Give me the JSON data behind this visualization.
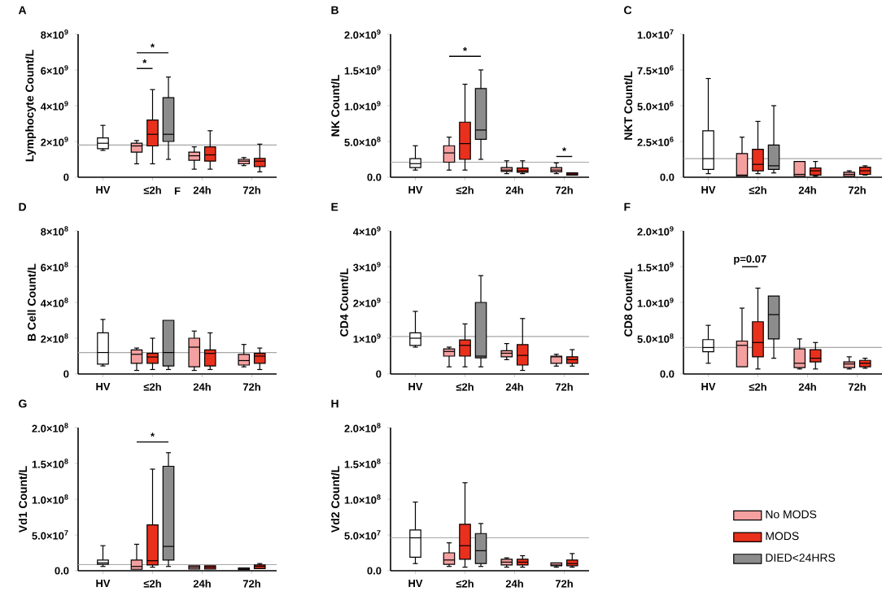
{
  "chart_data": [
    {
      "type": "box",
      "title": "A",
      "ylabel": "Lymphocyte Count/L",
      "categories": [
        "HV",
        "≤2h",
        "24h",
        "72h"
      ],
      "ylim": [
        0,
        8000000000
      ],
      "yticks": [
        0,
        {
          "value": 2000000000,
          "label": "2×10$^{9}$"
        },
        {
          "value": 4000000000,
          "label": "4×10$^{9}$"
        },
        {
          "value": 6000000000,
          "label": "6×10$^{9}$"
        },
        {
          "value": 8000000000,
          "label": "8×10$^{9}$"
        }
      ],
      "ref_lines": [
        {
          "axis": "y",
          "value": 1800000000,
          "color": "#a6a6a6"
        }
      ],
      "annotations": [
        "*",
        "*",
        "F"
      ],
      "series": [
        {
          "color": "#ffffff",
          "boxes": [
            {
              "low": 1500000000.0,
              "q1": 1600000000.0,
              "median": 1900000000.0,
              "q3": 2200000000.0,
              "high": 2900000000.0
            },
            null,
            null,
            null
          ]
        },
        {
          "color": "#f4a0a0",
          "boxes": [
            null,
            {
              "low": 750000000.0,
              "q1": 1400000000.0,
              "median": 1750000000.0,
              "q3": 1900000000.0,
              "high": 2050000000.0
            },
            {
              "low": 450000000.0,
              "q1": 950000000.0,
              "median": 1200000000.0,
              "q3": 1400000000.0,
              "high": 1700000000.0
            },
            {
              "low": 650000000.0,
              "q1": 750000000.0,
              "median": 900000000.0,
              "q3": 1000000000.0,
              "high": 1100000000.0
            }
          ]
        },
        {
          "color": "#e8301c",
          "boxes": [
            null,
            {
              "low": 750000000.0,
              "q1": 1750000000.0,
              "median": 2400000000.0,
              "q3": 3200000000.0,
              "high": 4900000000.0
            },
            {
              "low": 450000000.0,
              "q1": 900000000.0,
              "median": 1250000000.0,
              "q3": 1700000000.0,
              "high": 2600000000.0
            },
            {
              "low": 300000000.0,
              "q1": 600000000.0,
              "median": 900000000.0,
              "q3": 1050000000.0,
              "high": 1850000000.0
            }
          ]
        },
        {
          "color": "#8c8c8c",
          "boxes": [
            null,
            {
              "low": 1000000000.0,
              "q1": 2000000000.0,
              "median": 2400000000.0,
              "q3": 4450000000.0,
              "high": 5600000000.0
            },
            null,
            null
          ]
        }
      ]
    },
    {
      "type": "box",
      "title": "B",
      "ylabel": "NK Count/L",
      "categories": [
        "HV",
        "≤2h",
        "24h",
        "72h"
      ],
      "ylim": [
        0,
        2000000000
      ],
      "yticks": [
        {
          "value": 0,
          "label": "0.0"
        },
        {
          "value": 500000000,
          "label": "5.0×10$^{8}$"
        },
        {
          "value": 1000000000,
          "label": "1.0×10$^{9}$"
        },
        {
          "value": 1500000000,
          "label": "1.5×10$^{9}$"
        },
        {
          "value": 2000000000,
          "label": "2.0×10$^{9}$"
        }
      ],
      "ref_lines": [
        {
          "axis": "y",
          "value": 210000000,
          "color": "#a6a6a6"
        }
      ],
      "annotations": [
        "*",
        "*"
      ],
      "series": [
        {
          "color": "#ffffff",
          "boxes": [
            {
              "low": 100000000.0,
              "q1": 135000000.0,
              "median": 190000000.0,
              "q3": 260000000.0,
              "high": 440000000.0
            },
            null,
            null,
            null
          ]
        },
        {
          "color": "#f4a0a0",
          "boxes": [
            null,
            {
              "low": 100000000.0,
              "q1": 210000000.0,
              "median": 340000000.0,
              "q3": 440000000.0,
              "high": 560000000.0
            },
            {
              "low": 50000000.0,
              "q1": 80000000.0,
              "median": 100000000.0,
              "q3": 135000000.0,
              "high": 230000000.0
            },
            {
              "low": 50000000.0,
              "q1": 75000000.0,
              "median": 100000000.0,
              "q3": 135000000.0,
              "high": 200000000.0
            }
          ]
        },
        {
          "color": "#e8301c",
          "boxes": [
            null,
            {
              "low": 100000000.0,
              "q1": 250000000.0,
              "median": 470000000.0,
              "q3": 770000000.0,
              "high": 1300000000.0
            },
            {
              "low": 50000000.0,
              "q1": 70000000.0,
              "median": 90000000.0,
              "q3": 130000000.0,
              "high": 230000000.0
            },
            {
              "low": 30000000.0,
              "q1": 30000000.0,
              "median": 45000000.0,
              "q3": 60000000.0,
              "high": 60000000.0
            }
          ]
        },
        {
          "color": "#8c8c8c",
          "boxes": [
            null,
            {
              "low": 250000000.0,
              "q1": 530000000.0,
              "median": 660000000.0,
              "q3": 1240000000.0,
              "high": 1500000000.0
            },
            null,
            null
          ]
        }
      ]
    },
    {
      "type": "box",
      "title": "C",
      "ylabel": "NKT Count/L",
      "categories": [
        "HV",
        "≤2h",
        "24h",
        "72h"
      ],
      "ylim": [
        0,
        10000000
      ],
      "yticks": [
        {
          "value": 0,
          "label": "0.0"
        },
        {
          "value": 2500000,
          "label": "2.5×10$^{6}$"
        },
        {
          "value": 5000000,
          "label": "5.0×10$^{6}$"
        },
        {
          "value": 7500000,
          "label": "7.5×10$^{6}$"
        },
        {
          "value": 10000000,
          "label": "1.0×10$^{7}$"
        }
      ],
      "ref_lines": [
        {
          "axis": "y",
          "value": 1300000,
          "color": "#a6a6a6"
        }
      ],
      "series": [
        {
          "color": "#ffffff",
          "boxes": [
            {
              "low": 250000.0,
              "q1": 550000.0,
              "median": 1300000.0,
              "q3": 3250000.0,
              "high": 6900000.0
            },
            null,
            null,
            null
          ]
        },
        {
          "color": "#f4a0a0",
          "boxes": [
            null,
            {
              "low": 70000.0,
              "q1": 70000.0,
              "median": 150000.0,
              "q3": 1650000.0,
              "high": 2800000.0
            },
            {
              "low": 70000.0,
              "q1": 70000.0,
              "median": 200000.0,
              "q3": 1100000.0,
              "high": 1100000.0
            },
            {
              "low": 70000.0,
              "q1": 70000.0,
              "median": 200000.0,
              "q3": 350000.0,
              "high": 450000.0
            }
          ]
        },
        {
          "color": "#e8301c",
          "boxes": [
            null,
            {
              "low": 250000.0,
              "q1": 450000.0,
              "median": 900000.0,
              "q3": 1950000.0,
              "high": 3900000.0
            },
            {
              "low": 70000.0,
              "q1": 150000.0,
              "median": 450000.0,
              "q3": 650000.0,
              "high": 1100000.0
            },
            {
              "low": 150000.0,
              "q1": 200000.0,
              "median": 450000.0,
              "q3": 700000.0,
              "high": 800000.0
            }
          ]
        },
        {
          "color": "#8c8c8c",
          "boxes": [
            null,
            {
              "low": 300000.0,
              "q1": 550000.0,
              "median": 800000.0,
              "q3": 2250000.0,
              "high": 5000000.0
            },
            null,
            null
          ]
        }
      ]
    },
    {
      "type": "box",
      "title": "D",
      "ylabel": "B Cell Count/L",
      "categories": [
        "HV",
        "≤2h",
        "24h",
        "72h"
      ],
      "ylim": [
        0,
        800000000
      ],
      "yticks": [
        0,
        {
          "value": 200000000,
          "label": "2×10$^{8}$"
        },
        {
          "value": 400000000,
          "label": "4×10$^{8}$"
        },
        {
          "value": 600000000,
          "label": "6×10$^{8}$"
        },
        {
          "value": 800000000,
          "label": "8×10$^{8}$"
        }
      ],
      "ref_lines": [
        {
          "axis": "y",
          "value": 120000000,
          "color": "#a6a6a6"
        }
      ],
      "series": [
        {
          "color": "#ffffff",
          "boxes": [
            {
              "low": 45000000.0,
              "q1": 55000000.0,
              "median": 120000000.0,
              "q3": 230000000.0,
              "high": 305000000.0
            },
            null,
            null,
            null
          ]
        },
        {
          "color": "#f4a0a0",
          "boxes": [
            null,
            {
              "low": 20000000.0,
              "q1": 60000000.0,
              "median": 110000000.0,
              "q3": 135000000.0,
              "high": 145000000.0
            },
            {
              "low": 20000000.0,
              "q1": 40000000.0,
              "median": 150000000.0,
              "q3": 200000000.0,
              "high": 240000000.0
            },
            {
              "low": 40000000.0,
              "q1": 50000000.0,
              "median": 75000000.0,
              "q3": 110000000.0,
              "high": 165000000.0
            }
          ]
        },
        {
          "color": "#e8301c",
          "boxes": [
            null,
            {
              "low": 25000000.0,
              "q1": 60000000.0,
              "median": 95000000.0,
              "q3": 115000000.0,
              "high": 200000000.0
            },
            {
              "low": 25000000.0,
              "q1": 45000000.0,
              "median": 115000000.0,
              "q3": 135000000.0,
              "high": 230000000.0
            },
            {
              "low": 25000000.0,
              "q1": 60000000.0,
              "median": 100000000.0,
              "q3": 115000000.0,
              "high": 145000000.0
            }
          ]
        },
        {
          "color": "#8c8c8c",
          "boxes": [
            null,
            {
              "low": 25000000.0,
              "q1": 45000000.0,
              "median": 120000000.0,
              "q3": 300000000.0,
              "high": 300000000.0
            },
            null,
            null
          ]
        }
      ]
    },
    {
      "type": "box",
      "title": "E",
      "ylabel": "CD4 Count/L",
      "categories": [
        "HV",
        "≤2h",
        "24h",
        "72h"
      ],
      "ylim": [
        0,
        4000000000
      ],
      "yticks": [
        0,
        {
          "value": 1000000000,
          "label": "1×10$^{9}$"
        },
        {
          "value": 2000000000,
          "label": "2×10$^{9}$"
        },
        {
          "value": 3000000000,
          "label": "3×10$^{9}$"
        },
        {
          "value": 4000000000,
          "label": "4×10$^{9}$"
        }
      ],
      "ref_lines": [
        {
          "axis": "y",
          "value": 1050000000,
          "color": "#a6a6a6"
        }
      ],
      "series": [
        {
          "color": "#ffffff",
          "boxes": [
            {
              "low": 750000000.0,
              "q1": 800000000.0,
              "median": 1000000000.0,
              "q3": 1150000000.0,
              "high": 1750000000.0
            },
            null,
            null,
            null
          ]
        },
        {
          "color": "#f4a0a0",
          "boxes": [
            null,
            {
              "low": 200000000.0,
              "q1": 500000000.0,
              "median": 630000000.0,
              "q3": 700000000.0,
              "high": 750000000.0
            },
            {
              "low": 400000000.0,
              "q1": 480000000.0,
              "median": 580000000.0,
              "q3": 650000000.0,
              "high": 850000000.0
            },
            {
              "low": 220000000.0,
              "q1": 300000000.0,
              "median": 480000000.0,
              "q3": 500000000.0,
              "high": 550000000.0
            }
          ]
        },
        {
          "color": "#e8301c",
          "boxes": [
            null,
            {
              "low": 200000000.0,
              "q1": 500000000.0,
              "median": 800000000.0,
              "q3": 950000000.0,
              "high": 1400000000.0
            },
            {
              "low": 100000000.0,
              "q1": 250000000.0,
              "median": 520000000.0,
              "q3": 820000000.0,
              "high": 1550000000.0
            },
            {
              "low": 220000000.0,
              "q1": 300000000.0,
              "median": 400000000.0,
              "q3": 480000000.0,
              "high": 680000000.0
            }
          ]
        },
        {
          "color": "#8c8c8c",
          "boxes": [
            null,
            {
              "low": 200000000.0,
              "q1": 450000000.0,
              "median": 500000000.0,
              "q3": 2000000000.0,
              "high": 2750000000.0
            },
            null,
            null
          ]
        }
      ]
    },
    {
      "type": "box",
      "title": "F",
      "ylabel": "CD8 Count/L",
      "categories": [
        "HV",
        "≤2h",
        "24h",
        "72h"
      ],
      "ylim": [
        0,
        2000000000
      ],
      "yticks": [
        {
          "value": 0,
          "label": "0.0"
        },
        {
          "value": 500000000,
          "label": "5.0×10$^{8}$"
        },
        {
          "value": 1000000000,
          "label": "1.0×10$^{9}$"
        },
        {
          "value": 1500000000,
          "label": "1.5×10$^{9}$"
        },
        {
          "value": 2000000000,
          "label": "2.0×10$^{9}$"
        }
      ],
      "ref_lines": [
        {
          "axis": "y",
          "value": 370000000,
          "color": "#a6a6a6"
        }
      ],
      "annotations": [
        "p=0.07"
      ],
      "series": [
        {
          "color": "#ffffff",
          "boxes": [
            {
              "low": 150000000.0,
              "q1": 310000000.0,
              "median": 370000000.0,
              "q3": 480000000.0,
              "high": 680000000.0
            },
            null,
            null,
            null
          ]
        },
        {
          "color": "#f4a0a0",
          "boxes": [
            null,
            {
              "low": 100000000.0,
              "q1": 100000000.0,
              "median": 400000000.0,
              "q3": 460000000.0,
              "high": 920000000.0
            },
            {
              "low": 70000000.0,
              "q1": 90000000.0,
              "median": 150000000.0,
              "q3": 350000000.0,
              "high": 490000000.0
            },
            {
              "low": 70000000.0,
              "q1": 90000000.0,
              "median": 140000000.0,
              "q3": 170000000.0,
              "high": 240000000.0
            }
          ]
        },
        {
          "color": "#e8301c",
          "boxes": [
            null,
            {
              "low": 70000000.0,
              "q1": 240000000.0,
              "median": 440000000.0,
              "q3": 730000000.0,
              "high": 1200000000.0
            },
            {
              "low": 70000000.0,
              "q1": 170000000.0,
              "median": 220000000.0,
              "q3": 340000000.0,
              "high": 440000000.0
            },
            {
              "low": 80000000.0,
              "q1": 100000000.0,
              "median": 150000000.0,
              "q3": 190000000.0,
              "high": 220000000.0
            }
          ]
        },
        {
          "color": "#8c8c8c",
          "boxes": [
            null,
            {
              "low": 220000000.0,
              "q1": 490000000.0,
              "median": 830000000.0,
              "q3": 1090000000.0,
              "high": 1090000000.0
            },
            null,
            null
          ]
        }
      ]
    },
    {
      "type": "box",
      "title": "G",
      "ylabel": "Vd1 Count/L",
      "categories": [
        "HV",
        "≤2h",
        "24h",
        "72h"
      ],
      "ylim": [
        0,
        200000000
      ],
      "yticks": [
        {
          "value": 0,
          "label": "0.0"
        },
        {
          "value": 50000000,
          "label": "5.0×10$^{7}$"
        },
        {
          "value": 100000000,
          "label": "1.0×10$^{8}$"
        },
        {
          "value": 150000000,
          "label": "1.5×10$^{8}$"
        },
        {
          "value": 200000000,
          "label": "2.0×10$^{8}$"
        }
      ],
      "ref_lines": [
        {
          "axis": "y",
          "value": 8500000,
          "color": "#a6a6a6"
        }
      ],
      "annotations": [
        "*"
      ],
      "series": [
        {
          "color": "#ffffff",
          "boxes": [
            {
              "low": 6000000.0,
              "q1": 9000000.0,
              "median": 11000000.0,
              "q3": 15000000.0,
              "high": 35000000.0
            },
            null,
            null,
            null
          ]
        },
        {
          "color": "#f4a0a0",
          "boxes": [
            null,
            {
              "low": 2000000.0,
              "q1": 2000000.0,
              "median": 6000000.0,
              "q3": 15000000.0,
              "high": 37000000.0
            },
            {
              "low": 2500000.0,
              "q1": 2500000.0,
              "median": 5000000.0,
              "q3": 7000000.0,
              "high": 7000000.0
            },
            {
              "low": 1500000.0,
              "q1": 1500000.0,
              "median": 2500000.0,
              "q3": 4000000.0,
              "high": 4000000.0
            }
          ]
        },
        {
          "color": "#e8301c",
          "boxes": [
            null,
            {
              "low": 5000000.0,
              "q1": 8000000.0,
              "median": 14000000.0,
              "q3": 64000000.0,
              "high": 142000000.0
            },
            {
              "low": 2500000.0,
              "q1": 2500000.0,
              "median": 5000000.0,
              "q3": 7000000.0,
              "high": 7000000.0
            },
            {
              "low": 3000000.0,
              "q1": 3000000.0,
              "median": 6000000.0,
              "q3": 8000000.0,
              "high": 10000000.0
            }
          ]
        },
        {
          "color": "#8c8c8c",
          "boxes": [
            null,
            {
              "low": 6000000.0,
              "q1": 15000000.0,
              "median": 34000000.0,
              "q3": 146000000.0,
              "high": 165000000.0
            },
            null,
            null
          ]
        }
      ]
    },
    {
      "type": "box",
      "title": "H",
      "ylabel": "Vd2 Count/L",
      "categories": [
        "HV",
        "≤2h",
        "24h",
        "72h"
      ],
      "ylim": [
        0,
        200000000
      ],
      "yticks": [
        {
          "value": 0,
          "label": "0.0"
        },
        {
          "value": 50000000,
          "label": "5.0×10$^{7}$"
        },
        {
          "value": 100000000,
          "label": "1.0×10$^{8}$"
        },
        {
          "value": 150000000,
          "label": "1.5×10$^{8}$"
        },
        {
          "value": 200000000,
          "label": "2.0×10$^{8}$"
        }
      ],
      "ref_lines": [
        {
          "axis": "y",
          "value": 46000000,
          "color": "#a6a6a6"
        }
      ],
      "legend": "right",
      "series": [
        {
          "color": "#ffffff",
          "boxes": [
            {
              "low": 10000000.0,
              "q1": 19000000.0,
              "median": 46000000.0,
              "q3": 57000000.0,
              "high": 96000000.0
            },
            null,
            null,
            null
          ]
        },
        {
          "name": "No MODS",
          "color": "#f4a0a0",
          "boxes": [
            null,
            {
              "low": 6000000.0,
              "q1": 9000000.0,
              "median": 15000000.0,
              "q3": 25000000.0,
              "high": 39000000.0
            },
            {
              "low": 5000000.0,
              "q1": 8000000.0,
              "median": 12000000.0,
              "q3": 16000000.0,
              "high": 18000000.0
            },
            {
              "low": 5000000.0,
              "q1": 7000000.0,
              "median": 8000000.0,
              "q3": 11000000.0,
              "high": 11000000.0
            }
          ]
        },
        {
          "name": "MODS",
          "color": "#e8301c",
          "boxes": [
            null,
            {
              "low": 5000000.0,
              "q1": 16000000.0,
              "median": 35000000.0,
              "q3": 65000000.0,
              "high": 123000000.0
            },
            {
              "low": 5000000.0,
              "q1": 8000000.0,
              "median": 12000000.0,
              "q3": 16000000.0,
              "high": 21000000.0
            },
            {
              "low": 5000000.0,
              "q1": 7000000.0,
              "median": 10000000.0,
              "q3": 15000000.0,
              "high": 24000000.0
            }
          ]
        },
        {
          "name": "DIED<24HRS",
          "color": "#8c8c8c",
          "boxes": [
            null,
            {
              "low": 6000000.0,
              "q1": 10000000.0,
              "median": 28000000.0,
              "q3": 52000000.0,
              "high": 66000000.0
            },
            null,
            null
          ]
        }
      ]
    }
  ]
}
